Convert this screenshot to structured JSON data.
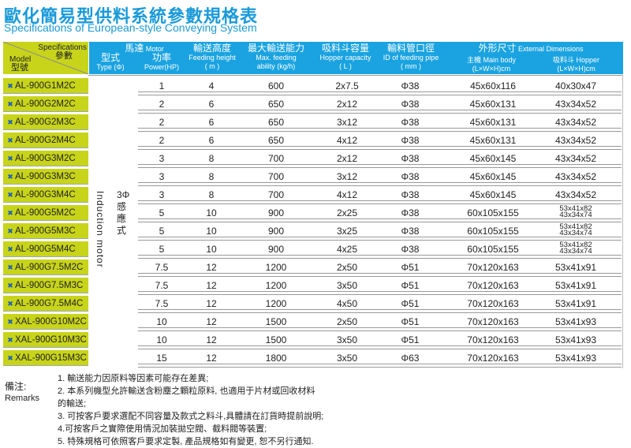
{
  "title": "歐化簡易型供料系統參數規格表",
  "subtitle": "Specifications of European-style Conveying System",
  "header": {
    "spec_en": "Specifications",
    "spec_cn": "參數",
    "model_en": "Model",
    "model_cn": "型號",
    "motor": "馬達",
    "motor_en": "Motor",
    "type_cn": "型式",
    "type_en": "Type (Φ)",
    "power_cn": "功率",
    "power_en": "Power(HP)",
    "height_cn": "輸送高度",
    "height_en": "Feeding height",
    "height_unit": "( m )",
    "feed_cn": "最大輸送能力",
    "feed_en1": "Max. feeding",
    "feed_en2": "ability (kg/h)",
    "hopper_cn": "吸料斗容量",
    "hopper_en": "Hopper capacity",
    "hopper_unit": "( L )",
    "pipe_cn": "輸料管口徑",
    "pipe_en": "ID of feeding pipe",
    "pipe_unit": "( mm )",
    "dim_cn": "外形尺寸",
    "dim_en": "External Dimensions",
    "body": "主機 Main body",
    "body_unit": "(L×W×H)cm",
    "hop": "吸料斗 Hopper",
    "hop_unit": "(L×W×H)cm"
  },
  "motor_type": {
    "phase": "3Φ",
    "cn": "感應式",
    "en": "Induction motor"
  },
  "rows": [
    [
      "AL-900G1M2C",
      "1",
      "4",
      "600",
      "2x7.5",
      "Φ38",
      "45x60x116",
      "40x30x47"
    ],
    [
      "AL-900G2M2C",
      "2",
      "6",
      "650",
      "2x12",
      "Φ38",
      "45x60x131",
      "43x34x52"
    ],
    [
      "AL-900G2M3C",
      "2",
      "6",
      "650",
      "3x12",
      "Φ38",
      "45x60x131",
      "43x34x52"
    ],
    [
      "AL-900G2M4C",
      "2",
      "6",
      "650",
      "4x12",
      "Φ38",
      "45x60x131",
      "43x34x52"
    ],
    [
      "AL-900G3M2C",
      "3",
      "8",
      "700",
      "2x12",
      "Φ38",
      "45x60x145",
      "43x34x52"
    ],
    [
      "AL-900G3M3C",
      "3",
      "8",
      "700",
      "3x12",
      "Φ38",
      "45x60x145",
      "43x34x52"
    ],
    [
      "AL-900G3M4C",
      "3",
      "8",
      "700",
      "4x12",
      "Φ38",
      "45x60x145",
      "43x34x52"
    ],
    [
      "AL-900G5M2C",
      "5",
      "10",
      "900",
      "2x25",
      "Φ38",
      "60x105x155",
      "53x41x82",
      "43x34x74"
    ],
    [
      "AL-900G5M3C",
      "5",
      "10",
      "900",
      "3x25",
      "Φ38",
      "60x105x155",
      "53x41x82",
      "43x34x74"
    ],
    [
      "AL-900G5M4C",
      "5",
      "10",
      "900",
      "4x25",
      "Φ38",
      "60x105x155",
      "53x41x82",
      "43x34x74"
    ],
    [
      "AL-900G7.5M2C",
      "7.5",
      "12",
      "1200",
      "2x50",
      "Φ51",
      "70x120x163",
      "53x41x91"
    ],
    [
      "AL-900G7.5M3C",
      "7.5",
      "12",
      "1200",
      "3x50",
      "Φ51",
      "70x120x163",
      "53x41x91"
    ],
    [
      "AL-900G7.5M4C",
      "7.5",
      "12",
      "1200",
      "4x50",
      "Φ51",
      "70x120x163",
      "53x41x91"
    ],
    [
      "XAL-900G10M2C",
      "10",
      "12",
      "1500",
      "2x50",
      "Φ51",
      "70x120x163",
      "53x41x93"
    ],
    [
      "XAL-900G10M3C",
      "10",
      "12",
      "1500",
      "3x50",
      "Φ51",
      "70x120x163",
      "53x41x93"
    ],
    [
      "XAL-900G15M3C",
      "15",
      "12",
      "1800",
      "3x50",
      "Φ63",
      "70x120x163",
      "53x41x93"
    ]
  ],
  "remarks": {
    "label_cn": "備注:",
    "label_en": "Remarks",
    "items": [
      "1. 輸送能力因原料等因素可能存在差異;",
      "2. 本系列機型允許輸送含粉塵之顆粒原料, 也適用于片材或回收材料",
      "的輸送;",
      "3. 可按客戶要求選配不同容量及款式之料斗,具體請在訂貨時提前說明;",
      "4.可按客戶之實際使用情況加裝拋空閥、截料閥等裝置;",
      "5. 特殊規格可依照客戶要求定製, 產品規格如有變更, 恕不另行通知."
    ]
  },
  "colors": {
    "accent": "#1aa3e0",
    "model_bg": "#c8d41a"
  }
}
